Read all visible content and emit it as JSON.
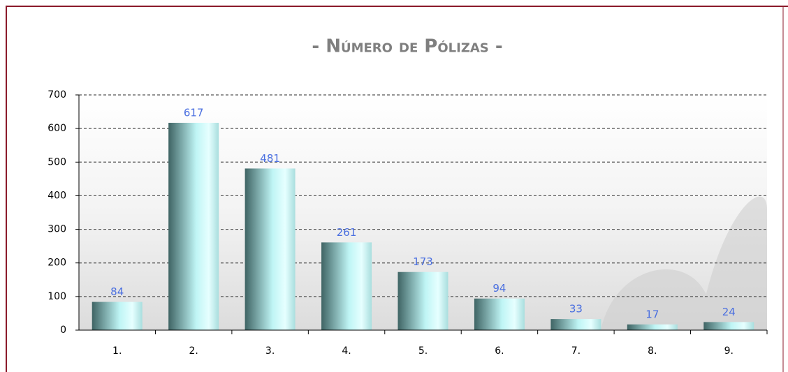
{
  "chart_data": {
    "type": "bar",
    "title": "- Número de Pólizas -",
    "categories": [
      "1.",
      "2.",
      "3.",
      "4.",
      "5.",
      "6.",
      "7.",
      "8.",
      "9."
    ],
    "values": [
      84,
      617,
      481,
      261,
      173,
      94,
      33,
      17,
      24
    ],
    "color": "#bff5f5",
    "ylim": [
      0,
      700
    ],
    "yticks": [
      0,
      100,
      200,
      300,
      400,
      500,
      600,
      700
    ],
    "grid": true
  }
}
